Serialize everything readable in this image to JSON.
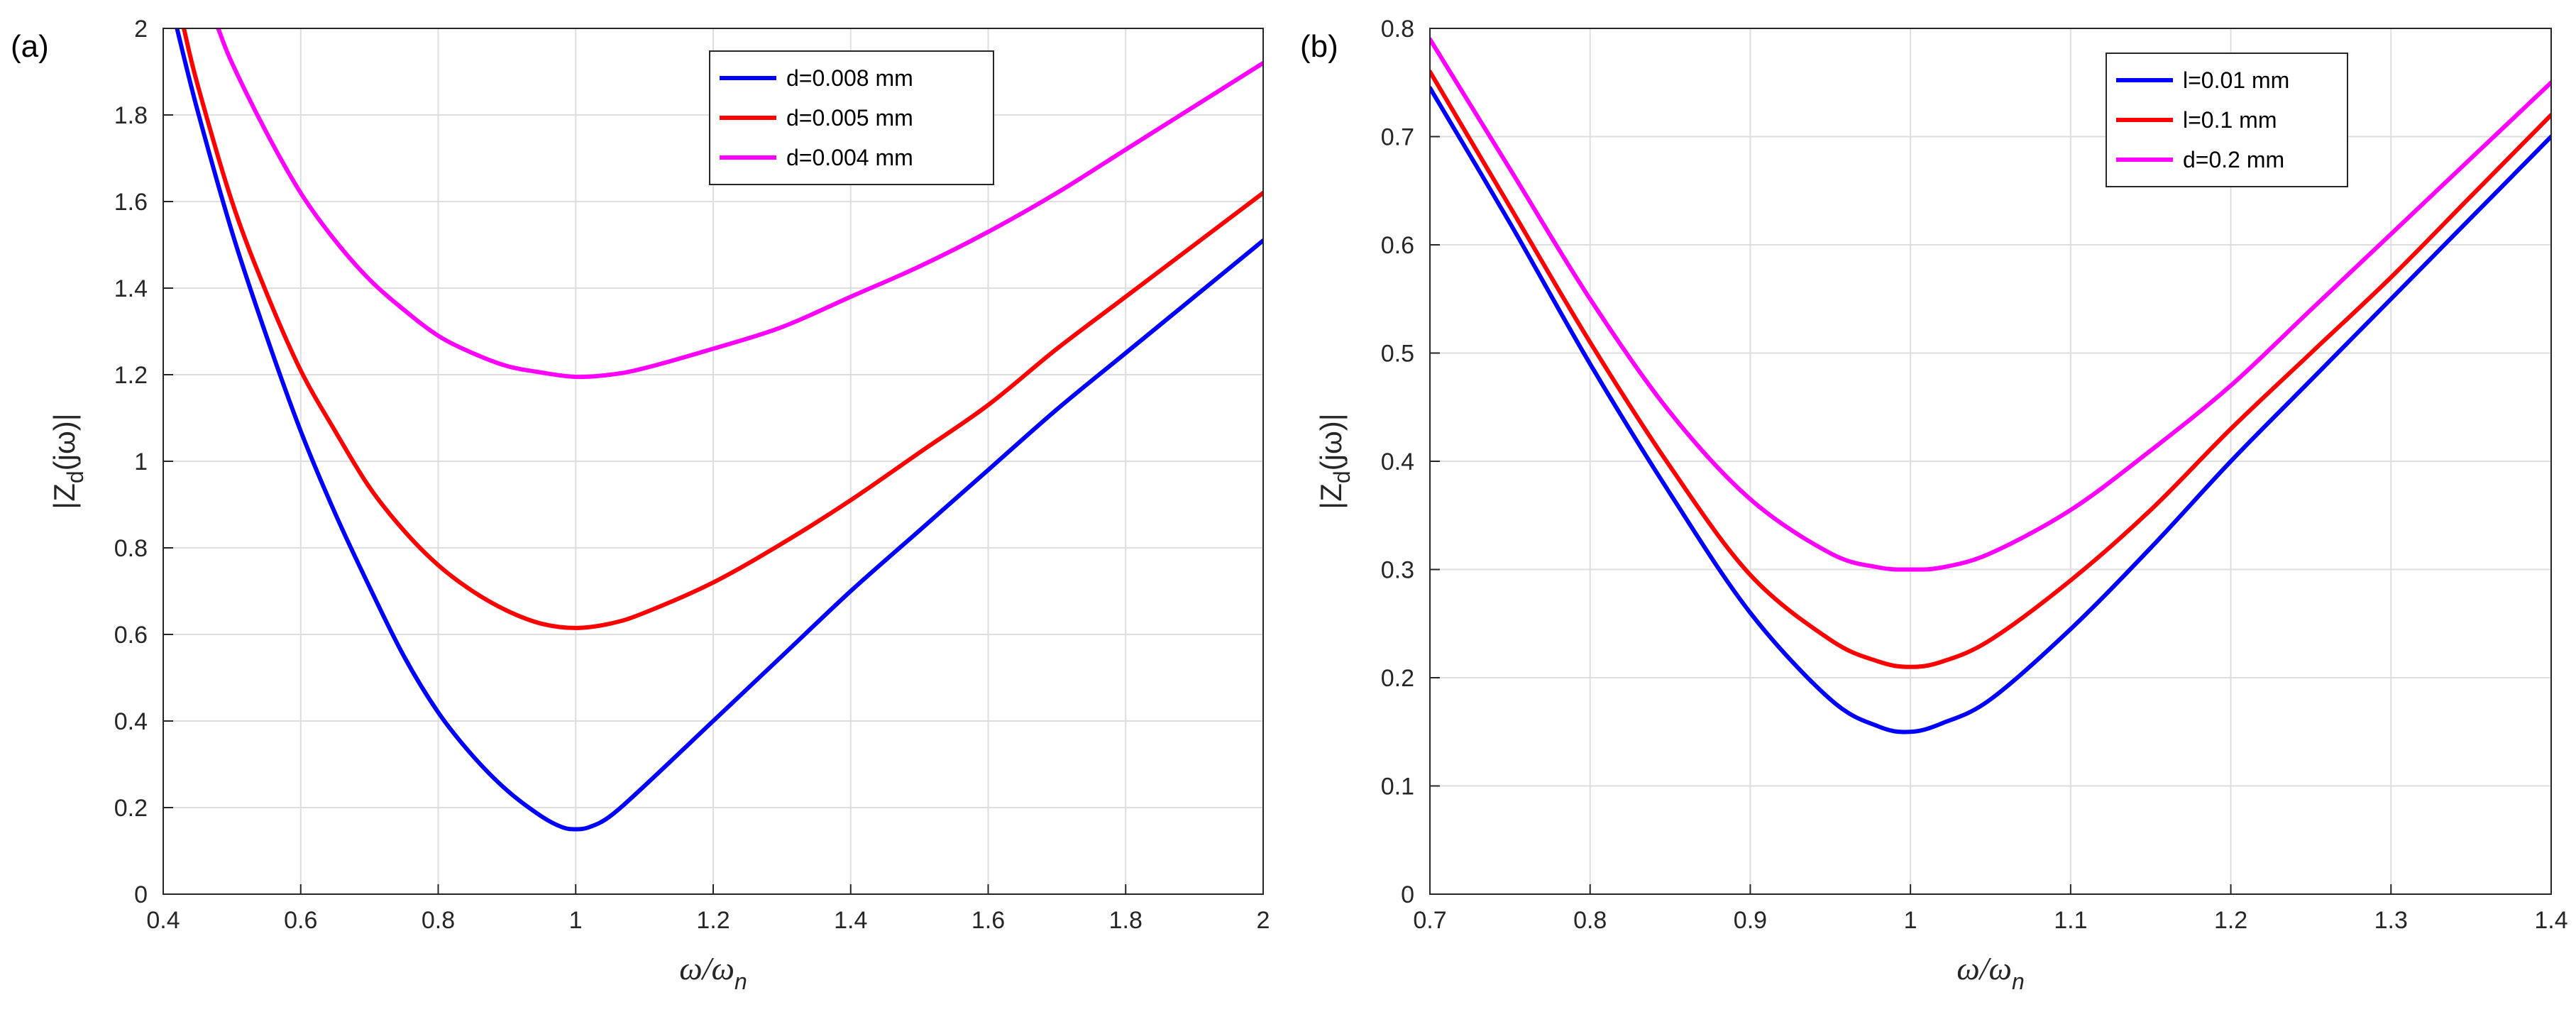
{
  "chart_data": [
    {
      "type": "line",
      "panel_label": "(a)",
      "xlabel": {
        "main": "ω/ω",
        "sub": "n"
      },
      "ylabel": {
        "pre": "|Z",
        "sub": "d",
        "post": "(jω)|"
      },
      "xlim": [
        0.4,
        2
      ],
      "ylim": [
        0,
        2
      ],
      "xticks": [
        "0.4",
        "0.6",
        "0.8",
        "1",
        "1.2",
        "1.4",
        "1.6",
        "1.8",
        "2"
      ],
      "yticks": [
        "0",
        "0.2",
        "0.4",
        "0.6",
        "0.8",
        "1",
        "1.2",
        "1.4",
        "1.6",
        "1.8",
        "2"
      ],
      "grid": true,
      "legend_position": "top-right",
      "series": [
        {
          "name": "d=0.008 mm",
          "color": "#0000ff",
          "x": [
            0.42,
            0.45,
            0.5,
            0.55,
            0.6,
            0.65,
            0.7,
            0.75,
            0.8,
            0.85,
            0.9,
            0.95,
            0.98,
            1.0,
            1.02,
            1.05,
            1.1,
            1.2,
            1.3,
            1.4,
            1.5,
            1.6,
            1.7,
            1.8,
            1.9,
            2.0
          ],
          "y": [
            2.0,
            1.81,
            1.53,
            1.29,
            1.07,
            0.88,
            0.71,
            0.55,
            0.42,
            0.32,
            0.24,
            0.18,
            0.155,
            0.15,
            0.155,
            0.18,
            0.25,
            0.4,
            0.55,
            0.7,
            0.84,
            0.98,
            1.12,
            1.25,
            1.38,
            1.51
          ]
        },
        {
          "name": "d=0.005 mm",
          "color": "#ff0000",
          "x": [
            0.43,
            0.45,
            0.5,
            0.55,
            0.6,
            0.65,
            0.7,
            0.75,
            0.8,
            0.85,
            0.9,
            0.95,
            1.0,
            1.05,
            1.1,
            1.2,
            1.3,
            1.4,
            1.5,
            1.6,
            1.7,
            1.8,
            1.9,
            2.0
          ],
          "y": [
            2.0,
            1.87,
            1.6,
            1.39,
            1.21,
            1.07,
            0.94,
            0.84,
            0.76,
            0.7,
            0.655,
            0.625,
            0.615,
            0.625,
            0.65,
            0.72,
            0.81,
            0.91,
            1.02,
            1.13,
            1.26,
            1.38,
            1.5,
            1.62
          ]
        },
        {
          "name": "d=0.004 mm",
          "color": "#ff00ff",
          "x": [
            0.48,
            0.5,
            0.55,
            0.6,
            0.65,
            0.7,
            0.75,
            0.8,
            0.85,
            0.9,
            0.95,
            1.0,
            1.05,
            1.1,
            1.2,
            1.3,
            1.4,
            1.5,
            1.6,
            1.7,
            1.8,
            1.9,
            2.0
          ],
          "y": [
            2.0,
            1.92,
            1.76,
            1.62,
            1.51,
            1.42,
            1.35,
            1.29,
            1.25,
            1.22,
            1.205,
            1.195,
            1.2,
            1.215,
            1.26,
            1.31,
            1.38,
            1.45,
            1.53,
            1.62,
            1.72,
            1.82,
            1.92
          ]
        }
      ]
    },
    {
      "type": "line",
      "panel_label": "(b)",
      "xlabel": {
        "main": "ω/ω",
        "sub": "n"
      },
      "ylabel": {
        "pre": "|Z",
        "sub": "d",
        "post": "(jω)|"
      },
      "xlim": [
        0.7,
        1.4
      ],
      "ylim": [
        0,
        0.8
      ],
      "xticks": [
        "0.7",
        "0.8",
        "0.9",
        "1",
        "1.1",
        "1.2",
        "1.3",
        "1.4"
      ],
      "yticks": [
        "0",
        "0.1",
        "0.2",
        "0.3",
        "0.4",
        "0.5",
        "0.6",
        "0.7",
        "0.8"
      ],
      "grid": true,
      "legend_position": "top-right",
      "series": [
        {
          "name": "l=0.01 mm",
          "color": "#0000ff",
          "x": [
            0.7,
            0.75,
            0.8,
            0.85,
            0.9,
            0.95,
            0.98,
            1.0,
            1.02,
            1.05,
            1.1,
            1.15,
            1.2,
            1.25,
            1.3,
            1.35,
            1.4
          ],
          "y": [
            0.745,
            0.62,
            0.49,
            0.37,
            0.26,
            0.18,
            0.155,
            0.15,
            0.158,
            0.18,
            0.245,
            0.32,
            0.4,
            0.475,
            0.55,
            0.625,
            0.7
          ]
        },
        {
          "name": "l=0.1 mm",
          "color": "#ff0000",
          "x": [
            0.7,
            0.75,
            0.8,
            0.85,
            0.9,
            0.95,
            0.98,
            1.0,
            1.02,
            1.05,
            1.1,
            1.15,
            1.2,
            1.25,
            1.3,
            1.35,
            1.4
          ],
          "y": [
            0.76,
            0.635,
            0.51,
            0.395,
            0.295,
            0.235,
            0.215,
            0.21,
            0.215,
            0.235,
            0.29,
            0.355,
            0.43,
            0.5,
            0.57,
            0.645,
            0.72
          ]
        },
        {
          "name": "d=0.2 mm",
          "color": "#ff00ff",
          "x": [
            0.7,
            0.75,
            0.8,
            0.85,
            0.9,
            0.95,
            0.98,
            1.0,
            1.02,
            1.05,
            1.1,
            1.15,
            1.2,
            1.25,
            1.3,
            1.35,
            1.4
          ],
          "y": [
            0.79,
            0.67,
            0.55,
            0.445,
            0.365,
            0.315,
            0.302,
            0.3,
            0.302,
            0.315,
            0.355,
            0.41,
            0.47,
            0.54,
            0.61,
            0.68,
            0.75
          ]
        }
      ]
    }
  ]
}
